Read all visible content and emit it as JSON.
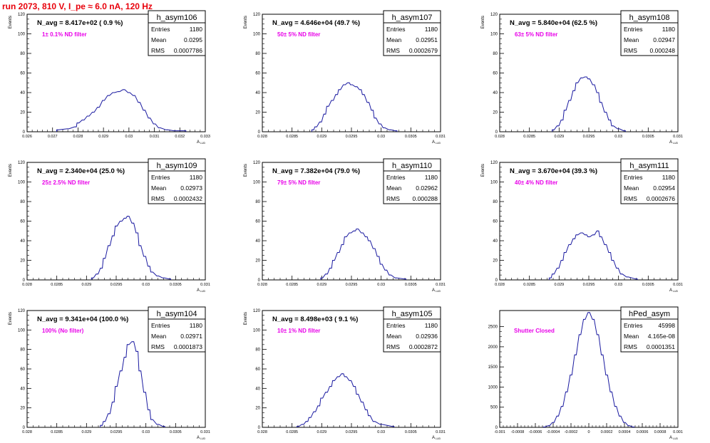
{
  "header": {
    "title": "run 2073,   810 V, I_pe ≈ 6.0 nA, 120 Hz"
  },
  "colors": {
    "title": "#e8000b",
    "annotation": "#e800e8",
    "histogram": "#1a1aa0",
    "text": "#000000"
  },
  "chart_data": [
    {
      "type": "bar",
      "name": "h_asym106",
      "ylabel": "Events",
      "xlabel": "A",
      "navg": "N_avg = 8.417e+02 ( 0.9 %)",
      "filter": "1± 0.1% ND filter",
      "stats": [
        [
          "Entries",
          "1180"
        ],
        [
          "Mean",
          "0.0295"
        ],
        [
          "RMS",
          "0.0007786"
        ]
      ],
      "xlim": [
        0.026,
        0.033
      ],
      "ylim": [
        0,
        120
      ],
      "xticks": [
        "0.026",
        "0.027",
        "0.028",
        "0.029",
        "0.03",
        "0.031",
        "0.032",
        "0.033"
      ],
      "yticks": [
        "0",
        "20",
        "40",
        "60",
        "80",
        "100",
        "120"
      ],
      "bin_count": 90,
      "hist": [
        [
          0.0272,
          2
        ],
        [
          0.0276,
          3
        ],
        [
          0.0279,
          5
        ],
        [
          0.028,
          9
        ],
        [
          0.0282,
          12
        ],
        [
          0.0284,
          16
        ],
        [
          0.0286,
          20
        ],
        [
          0.0288,
          25
        ],
        [
          0.029,
          32
        ],
        [
          0.0292,
          37
        ],
        [
          0.0294,
          40
        ],
        [
          0.0296,
          41
        ],
        [
          0.0298,
          43
        ],
        [
          0.03,
          40
        ],
        [
          0.0302,
          37
        ],
        [
          0.0304,
          30
        ],
        [
          0.0306,
          22
        ],
        [
          0.0308,
          14
        ],
        [
          0.031,
          8
        ],
        [
          0.0312,
          4
        ],
        [
          0.0315,
          2
        ],
        [
          0.0318,
          1
        ],
        [
          0.0322,
          1
        ]
      ]
    },
    {
      "type": "bar",
      "name": "h_asym107",
      "ylabel": "Events",
      "xlabel": "A",
      "navg": "N_avg = 4.646e+04 (49.7 %)",
      "filter": "50± 5% ND filter",
      "stats": [
        [
          "Entries",
          "1180"
        ],
        [
          "Mean",
          "0.02951"
        ],
        [
          "RMS",
          "0.0002679"
        ]
      ],
      "xlim": [
        0.028,
        0.031
      ],
      "ylim": [
        0,
        120
      ],
      "xticks": [
        "0.028",
        "0.0285",
        "0.029",
        "0.0295",
        "0.03",
        "0.0305",
        "0.031"
      ],
      "yticks": [
        "0",
        "20",
        "40",
        "60",
        "80",
        "100",
        "120"
      ],
      "bin_count": 90,
      "hist": [
        [
          0.02885,
          2
        ],
        [
          0.0289,
          5
        ],
        [
          0.02898,
          10
        ],
        [
          0.02905,
          18
        ],
        [
          0.0291,
          26
        ],
        [
          0.02918,
          32
        ],
        [
          0.02925,
          38
        ],
        [
          0.0293,
          43
        ],
        [
          0.02938,
          48
        ],
        [
          0.02945,
          50
        ],
        [
          0.0295,
          48
        ],
        [
          0.02958,
          46
        ],
        [
          0.02965,
          43
        ],
        [
          0.0297,
          38
        ],
        [
          0.02978,
          30
        ],
        [
          0.02985,
          22
        ],
        [
          0.0299,
          14
        ],
        [
          0.02998,
          8
        ],
        [
          0.03005,
          4
        ],
        [
          0.03015,
          2
        ],
        [
          0.03025,
          1
        ]
      ]
    },
    {
      "type": "bar",
      "name": "h_asym108",
      "ylabel": "Events",
      "xlabel": "A",
      "navg": "N_avg = 5.840e+04 (62.5 %)",
      "filter": "63± 5% ND filter",
      "stats": [
        [
          "Entries",
          "1180"
        ],
        [
          "Mean",
          "0.02947"
        ],
        [
          "RMS",
          "0.000248"
        ]
      ],
      "xlim": [
        0.028,
        0.031
      ],
      "ylim": [
        0,
        120
      ],
      "xticks": [
        "0.028",
        "0.0285",
        "0.029",
        "0.0295",
        "0.03",
        "0.0305",
        "0.031"
      ],
      "yticks": [
        "0",
        "20",
        "40",
        "60",
        "80",
        "100",
        "120"
      ],
      "bin_count": 90,
      "hist": [
        [
          0.0289,
          2
        ],
        [
          0.02898,
          6
        ],
        [
          0.02905,
          12
        ],
        [
          0.0291,
          22
        ],
        [
          0.02918,
          32
        ],
        [
          0.02925,
          42
        ],
        [
          0.0293,
          50
        ],
        [
          0.02938,
          55
        ],
        [
          0.02945,
          56
        ],
        [
          0.0295,
          54
        ],
        [
          0.02958,
          48
        ],
        [
          0.02965,
          40
        ],
        [
          0.0297,
          30
        ],
        [
          0.02978,
          20
        ],
        [
          0.02985,
          12
        ],
        [
          0.0299,
          6
        ],
        [
          0.03,
          3
        ],
        [
          0.0301,
          1
        ]
      ]
    },
    {
      "type": "bar",
      "name": "h_asym109",
      "ylabel": "Events",
      "xlabel": "A",
      "navg": "N_avg = 2.340e+04 (25.0 %)",
      "filter": "25± 2.5% ND filter",
      "stats": [
        [
          "Entries",
          "1180"
        ],
        [
          "Mean",
          "0.02973"
        ],
        [
          "RMS",
          "0.0002432"
        ]
      ],
      "xlim": [
        0.028,
        0.031
      ],
      "ylim": [
        0,
        120
      ],
      "xticks": [
        "0.028",
        "0.0285",
        "0.029",
        "0.0295",
        "0.03",
        "0.0305",
        "0.031"
      ],
      "yticks": [
        "0",
        "20",
        "40",
        "60",
        "80",
        "100",
        "120"
      ],
      "bin_count": 90,
      "hist": [
        [
          0.0291,
          2
        ],
        [
          0.02918,
          6
        ],
        [
          0.02925,
          12
        ],
        [
          0.0293,
          22
        ],
        [
          0.02938,
          35
        ],
        [
          0.02945,
          45
        ],
        [
          0.0295,
          55
        ],
        [
          0.02958,
          60
        ],
        [
          0.02965,
          63
        ],
        [
          0.0297,
          65
        ],
        [
          0.02978,
          58
        ],
        [
          0.02985,
          48
        ],
        [
          0.0299,
          35
        ],
        [
          0.02998,
          24
        ],
        [
          0.03005,
          14
        ],
        [
          0.0301,
          8
        ],
        [
          0.0302,
          4
        ],
        [
          0.0303,
          2
        ],
        [
          0.0304,
          1
        ]
      ]
    },
    {
      "type": "bar",
      "name": "h_asym110",
      "ylabel": "Events",
      "xlabel": "A",
      "navg": "N_avg = 7.382e+04 (79.0 %)",
      "filter": "79± 5% ND filter",
      "stats": [
        [
          "Entries",
          "1180"
        ],
        [
          "Mean",
          "0.02962"
        ],
        [
          "RMS",
          "0.000288"
        ]
      ],
      "xlim": [
        0.028,
        0.031
      ],
      "ylim": [
        0,
        120
      ],
      "xticks": [
        "0.028",
        "0.0285",
        "0.029",
        "0.0295",
        "0.03",
        "0.0305",
        "0.031"
      ],
      "yticks": [
        "0",
        "20",
        "40",
        "60",
        "80",
        "100",
        "120"
      ],
      "bin_count": 90,
      "hist": [
        [
          0.029,
          2
        ],
        [
          0.02908,
          6
        ],
        [
          0.02915,
          12
        ],
        [
          0.0292,
          20
        ],
        [
          0.02928,
          28
        ],
        [
          0.02935,
          36
        ],
        [
          0.0294,
          44
        ],
        [
          0.02948,
          48
        ],
        [
          0.02955,
          50
        ],
        [
          0.0296,
          52
        ],
        [
          0.02968,
          48
        ],
        [
          0.02975,
          44
        ],
        [
          0.0298,
          40
        ],
        [
          0.02988,
          32
        ],
        [
          0.02995,
          24
        ],
        [
          0.03,
          16
        ],
        [
          0.03008,
          10
        ],
        [
          0.03015,
          5
        ],
        [
          0.03025,
          2
        ],
        [
          0.0304,
          1
        ]
      ]
    },
    {
      "type": "bar",
      "name": "h_asym111",
      "ylabel": "Events",
      "xlabel": "A",
      "navg": "N_avg = 3.670e+04 (39.3 %)",
      "filter": "40± 4% ND filter",
      "stats": [
        [
          "Entries",
          "1180"
        ],
        [
          "Mean",
          "0.02954"
        ],
        [
          "RMS",
          "0.0002676"
        ]
      ],
      "xlim": [
        0.028,
        0.031
      ],
      "ylim": [
        0,
        120
      ],
      "xticks": [
        "0.028",
        "0.0285",
        "0.029",
        "0.0295",
        "0.03",
        "0.0305",
        "0.031"
      ],
      "yticks": [
        "0",
        "20",
        "40",
        "60",
        "80",
        "100",
        "120"
      ],
      "bin_count": 90,
      "hist": [
        [
          0.02885,
          2
        ],
        [
          0.0289,
          6
        ],
        [
          0.02898,
          12
        ],
        [
          0.02905,
          20
        ],
        [
          0.0291,
          28
        ],
        [
          0.02918,
          36
        ],
        [
          0.02925,
          42
        ],
        [
          0.0293,
          46
        ],
        [
          0.02938,
          48
        ],
        [
          0.02945,
          46
        ],
        [
          0.0295,
          44
        ],
        [
          0.02958,
          46
        ],
        [
          0.02965,
          50
        ],
        [
          0.0297,
          44
        ],
        [
          0.02978,
          36
        ],
        [
          0.02985,
          28
        ],
        [
          0.0299,
          20
        ],
        [
          0.02998,
          12
        ],
        [
          0.03005,
          6
        ],
        [
          0.03015,
          3
        ],
        [
          0.0303,
          1
        ]
      ]
    },
    {
      "type": "bar",
      "name": "h_asym104",
      "ylabel": "Events",
      "xlabel": "A",
      "navg": "N_avg = 9.341e+04 (100.0 %)",
      "filter": "100% (No filter)",
      "stats": [
        [
          "Entries",
          "1180"
        ],
        [
          "Mean",
          "0.02971"
        ],
        [
          "RMS",
          "0.0001873"
        ]
      ],
      "xlim": [
        0.028,
        0.031
      ],
      "ylim": [
        0,
        120
      ],
      "xticks": [
        "0.028",
        "0.0285",
        "0.029",
        "0.0295",
        "0.03",
        "0.0305",
        "0.031"
      ],
      "yticks": [
        "0",
        "20",
        "40",
        "60",
        "80",
        "100",
        "120"
      ],
      "bin_count": 90,
      "hist": [
        [
          0.02925,
          2
        ],
        [
          0.0293,
          6
        ],
        [
          0.02938,
          14
        ],
        [
          0.02945,
          26
        ],
        [
          0.0295,
          42
        ],
        [
          0.02958,
          58
        ],
        [
          0.02965,
          72
        ],
        [
          0.0297,
          85
        ],
        [
          0.02978,
          88
        ],
        [
          0.02985,
          78
        ],
        [
          0.0299,
          58
        ],
        [
          0.02998,
          36
        ],
        [
          0.03005,
          18
        ],
        [
          0.0301,
          8
        ],
        [
          0.0302,
          3
        ],
        [
          0.0303,
          1
        ]
      ]
    },
    {
      "type": "bar",
      "name": "h_asym105",
      "ylabel": "Events",
      "xlabel": "A",
      "navg": "N_avg = 8.498e+03 ( 9.1 %)",
      "filter": "10± 1% ND filter",
      "stats": [
        [
          "Entries",
          "1180"
        ],
        [
          "Mean",
          "0.02936"
        ],
        [
          "RMS",
          "0.0002872"
        ]
      ],
      "xlim": [
        0.028,
        0.031
      ],
      "ylim": [
        0,
        120
      ],
      "xticks": [
        "0.028",
        "0.0285",
        "0.029",
        "0.0295",
        "0.03",
        "0.0305",
        "0.031"
      ],
      "yticks": [
        "0",
        "20",
        "40",
        "60",
        "80",
        "100",
        "120"
      ],
      "bin_count": 90,
      "hist": [
        [
          0.0286,
          1
        ],
        [
          0.02868,
          3
        ],
        [
          0.02875,
          6
        ],
        [
          0.0288,
          10
        ],
        [
          0.02888,
          16
        ],
        [
          0.02895,
          22
        ],
        [
          0.029,
          30
        ],
        [
          0.02908,
          36
        ],
        [
          0.02915,
          42
        ],
        [
          0.0292,
          48
        ],
        [
          0.02928,
          52
        ],
        [
          0.02935,
          55
        ],
        [
          0.0294,
          52
        ],
        [
          0.02948,
          48
        ],
        [
          0.02955,
          42
        ],
        [
          0.0296,
          34
        ],
        [
          0.02968,
          26
        ],
        [
          0.02975,
          18
        ],
        [
          0.0298,
          12
        ],
        [
          0.02988,
          6
        ],
        [
          0.03,
          3
        ],
        [
          0.0302,
          1
        ]
      ]
    },
    {
      "type": "bar",
      "name": "hPed_asym",
      "ylabel": "",
      "xlabel": "A",
      "navg": "",
      "filter": "Shutter Closed",
      "stats": [
        [
          "Entries",
          "45998"
        ],
        [
          "Mean",
          "4.165e-08"
        ],
        [
          "RMS",
          "0.0001351"
        ]
      ],
      "xlim": [
        -0.001,
        0.001
      ],
      "ylim": [
        0,
        2900
      ],
      "xticks": [
        "-0.001",
        "-0.0008",
        "-0.0006",
        "-0.0004",
        "-0.0002",
        "0",
        "0.0002",
        "0.0004",
        "0.0006",
        "0.0008",
        "0.001"
      ],
      "yticks": [
        "0",
        "500",
        "1000",
        "1500",
        "2000",
        "2500"
      ],
      "bin_count": 100,
      "hist": [
        [
          -0.0005,
          8
        ],
        [
          -0.00045,
          40
        ],
        [
          -0.0004,
          120
        ],
        [
          -0.00035,
          280
        ],
        [
          -0.0003,
          520
        ],
        [
          -0.00025,
          880
        ],
        [
          -0.0002,
          1300
        ],
        [
          -0.00015,
          1800
        ],
        [
          -0.0001,
          2300
        ],
        [
          -5e-05,
          2680
        ],
        [
          0,
          2850
        ],
        [
          5e-05,
          2680
        ],
        [
          0.0001,
          2300
        ],
        [
          0.00015,
          1800
        ],
        [
          0.0002,
          1300
        ],
        [
          0.00025,
          880
        ],
        [
          0.0003,
          520
        ],
        [
          0.00035,
          280
        ],
        [
          0.0004,
          120
        ],
        [
          0.00045,
          40
        ],
        [
          0.0005,
          8
        ]
      ]
    }
  ]
}
